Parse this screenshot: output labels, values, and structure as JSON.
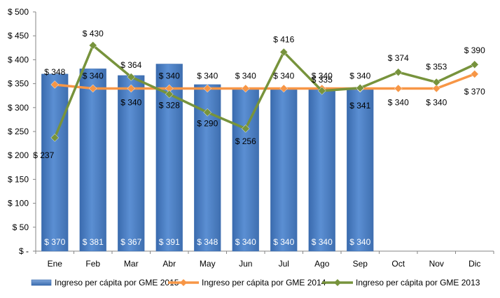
{
  "chart_data": {
    "type": "bar",
    "title": "",
    "xlabel": "",
    "ylabel": "",
    "ylim": [
      0,
      500
    ],
    "grid": false,
    "legend_position": "bottom",
    "categories": [
      "Ene",
      "Feb",
      "Mar",
      "Abr",
      "May",
      "Jun",
      "Jul",
      "Ago",
      "Sep",
      "Oct",
      "Nov",
      "Dic"
    ],
    "y_ticks": [
      0,
      50,
      100,
      150,
      200,
      250,
      300,
      350,
      400,
      450,
      500
    ],
    "y_tick_labels": [
      "$ -",
      "$ 50",
      "$ 100",
      "$ 150",
      "$ 200",
      "$ 250",
      "$ 300",
      "$ 350",
      "$ 400",
      "$ 450",
      "$ 500"
    ],
    "series": [
      {
        "name": "Ingreso per cápita por GME 2015",
        "kind": "bar",
        "color": "#4F81BD",
        "values": [
          370,
          381,
          367,
          391,
          348,
          340,
          340,
          340,
          340,
          null,
          null,
          null
        ],
        "labels": [
          "$ 370",
          "$ 381",
          "$ 367",
          "$ 391",
          "$ 348",
          "$ 340",
          "$ 340",
          "$ 340",
          "$ 340",
          "",
          "",
          ""
        ]
      },
      {
        "name": "Ingreso per cápita por GME 2014",
        "kind": "line",
        "color": "#F79646",
        "values": [
          348,
          340,
          340,
          340,
          340,
          340,
          340,
          340,
          340,
          340,
          340,
          370
        ],
        "labels": [
          "$ 348",
          "$ 340",
          "$ 340",
          "$ 340",
          "$ 340",
          "$ 340",
          "$ 340",
          "$ 340",
          "$ 340",
          "$ 340",
          "$ 340",
          "$ 370"
        ]
      },
      {
        "name": "Ingreso per cápita por GME 2013",
        "kind": "line",
        "color": "#77933C",
        "values": [
          237,
          430,
          364,
          328,
          290,
          256,
          416,
          335,
          341,
          374,
          353,
          390
        ],
        "labels": [
          "$ 237",
          "$ 430",
          "$ 364",
          "$ 328",
          "$ 290",
          "$ 256",
          "$ 416",
          "$ 335",
          "$ 341",
          "$ 374",
          "$ 353",
          "$ 390"
        ]
      }
    ]
  }
}
